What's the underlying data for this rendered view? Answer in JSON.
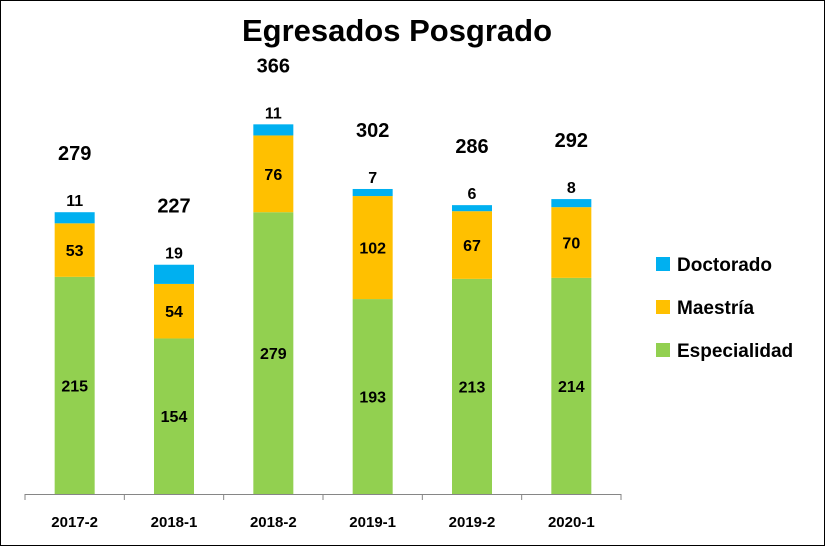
{
  "chart_data": {
    "type": "bar",
    "stacked": true,
    "title": "Egresados Posgrado",
    "xlabel": "",
    "ylabel": "",
    "categories": [
      "2017-2",
      "2018-1",
      "2018-2",
      "2019-1",
      "2019-2",
      "2020-1"
    ],
    "series": [
      {
        "name": "Especialidad",
        "color": "#92d050",
        "values": [
          215,
          154,
          279,
          193,
          213,
          214
        ]
      },
      {
        "name": "Maestría",
        "color": "#ffc000",
        "values": [
          53,
          54,
          76,
          102,
          67,
          70
        ]
      },
      {
        "name": "Doctorado",
        "color": "#00b0f0",
        "values": [
          11,
          19,
          11,
          7,
          6,
          8
        ]
      }
    ],
    "totals": [
      279,
      227,
      366,
      302,
      286,
      292
    ],
    "grid": false,
    "legend_position": "right",
    "y_axis_visible": false
  }
}
